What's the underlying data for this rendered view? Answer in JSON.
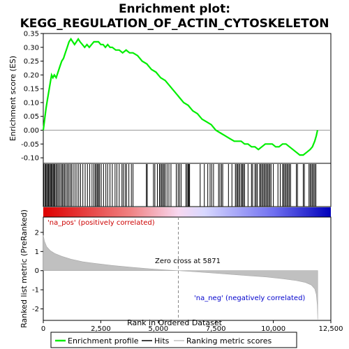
{
  "chart_data": {
    "type": "line",
    "title_line1": "Enrichment plot:",
    "title_line2": "KEGG_REGULATION_OF_ACTIN_CYTOSKELETON",
    "top_panel": {
      "ylabel": "Enrichment score (ES)",
      "ylim": [
        -0.12,
        0.35
      ],
      "yticks": [
        "0.35",
        "0.30",
        "0.25",
        "0.20",
        "0.15",
        "0.10",
        "0.05",
        "0.00",
        "-0.05",
        "-0.10"
      ],
      "ytick_values": [
        0.35,
        0.3,
        0.25,
        0.2,
        0.15,
        0.1,
        0.05,
        0.0,
        -0.05,
        -0.1
      ],
      "series": [
        {
          "name": "Enrichment profile",
          "color": "#00ee00",
          "x": [
            0,
            60,
            120,
            180,
            240,
            300,
            360,
            420,
            480,
            560,
            640,
            720,
            800,
            880,
            960,
            1040,
            1120,
            1200,
            1280,
            1360,
            1440,
            1520,
            1600,
            1700,
            1800,
            1900,
            2000,
            2100,
            2200,
            2300,
            2400,
            2500,
            2600,
            2700,
            2800,
            2900,
            3000,
            3150,
            3300,
            3450,
            3600,
            3750,
            3900,
            4100,
            4300,
            4500,
            4700,
            4900,
            5100,
            5300,
            5500,
            5700,
            5900,
            6100,
            6300,
            6500,
            6700,
            6900,
            7100,
            7300,
            7500,
            7700,
            7900,
            8100,
            8300,
            8450,
            8600,
            8750,
            8900,
            9050,
            9200,
            9350,
            9500,
            9650,
            9800,
            9950,
            10100,
            10250,
            10400,
            10550,
            10700,
            10850,
            11000,
            11150,
            11300,
            11450,
            11600,
            11700,
            11800,
            11870,
            11920
          ],
          "y": [
            0.0,
            0.04,
            0.08,
            0.11,
            0.14,
            0.17,
            0.2,
            0.19,
            0.2,
            0.19,
            0.21,
            0.23,
            0.25,
            0.26,
            0.28,
            0.3,
            0.32,
            0.33,
            0.32,
            0.31,
            0.32,
            0.33,
            0.32,
            0.31,
            0.3,
            0.31,
            0.3,
            0.31,
            0.32,
            0.32,
            0.32,
            0.31,
            0.31,
            0.3,
            0.31,
            0.3,
            0.3,
            0.29,
            0.29,
            0.28,
            0.29,
            0.28,
            0.28,
            0.27,
            0.25,
            0.24,
            0.22,
            0.21,
            0.19,
            0.18,
            0.16,
            0.14,
            0.12,
            0.1,
            0.09,
            0.07,
            0.06,
            0.04,
            0.03,
            0.02,
            0.0,
            -0.01,
            -0.02,
            -0.03,
            -0.04,
            -0.04,
            -0.04,
            -0.05,
            -0.05,
            -0.06,
            -0.06,
            -0.07,
            -0.06,
            -0.05,
            -0.05,
            -0.05,
            -0.06,
            -0.06,
            -0.05,
            -0.05,
            -0.06,
            -0.07,
            -0.08,
            -0.09,
            -0.09,
            -0.08,
            -0.07,
            -0.06,
            -0.04,
            -0.02,
            0.0
          ]
        }
      ]
    },
    "hits_panel": {
      "series_name": "Hits",
      "hit_positions": [
        20,
        70,
        110,
        150,
        190,
        230,
        270,
        310,
        350,
        390,
        430,
        470,
        510,
        560,
        610,
        660,
        720,
        780,
        830,
        880,
        930,
        990,
        1050,
        1110,
        1170,
        1230,
        1300,
        1380,
        1460,
        1540,
        1620,
        1720,
        1820,
        1920,
        2020,
        2120,
        2200,
        2260,
        2310,
        2360,
        2400,
        2450,
        2520,
        2620,
        2720,
        2800,
        2900,
        3000,
        3120,
        3200,
        3300,
        3420,
        3480,
        3560,
        3620,
        3720,
        3830,
        3900,
        4480,
        4520,
        4790,
        4850,
        4960,
        5050,
        5100,
        5150,
        5200,
        5250,
        5300,
        5380,
        5460,
        5550,
        5780,
        5860,
        5920,
        5990,
        6200,
        6250,
        6300,
        6330,
        6360,
        6820,
        7000,
        7150,
        7250,
        7320,
        7400,
        7620,
        7680,
        7750,
        7800,
        8050,
        8200,
        8350,
        8400,
        8450,
        8500,
        8550,
        8620,
        8650,
        8700,
        8750,
        8900,
        9050,
        9100,
        9200,
        9250,
        9300,
        9400,
        9450,
        9500,
        9550,
        9600,
        9650,
        9700,
        9750,
        9800,
        9850,
        9900,
        10000,
        10200,
        10300,
        10400,
        10450,
        10500,
        10550,
        10600,
        10650,
        10700,
        10750,
        11000,
        11050,
        11300,
        11350,
        11550,
        11600,
        11650,
        11700,
        11750,
        11800,
        11850
      ]
    },
    "rank_panel": {
      "series_name": "Ranking metric scores",
      "ylabel": "Ranked list metric (PreRanked)",
      "ylim": [
        -2.6,
        2.8
      ],
      "yticks": [
        "2",
        "1",
        "0",
        "-1",
        "-2"
      ],
      "ytick_values": [
        2,
        1,
        0,
        -1,
        -2
      ],
      "x": [
        0,
        50,
        150,
        300,
        500,
        800,
        1200,
        1700,
        2300,
        3000,
        3800,
        4600,
        5400,
        5871,
        6500,
        7300,
        8100,
        8900,
        9700,
        10400,
        11000,
        11400,
        11650,
        11800,
        11870,
        11910,
        11930
      ],
      "y": [
        1.85,
        1.55,
        1.25,
        1.05,
        0.9,
        0.75,
        0.6,
        0.47,
        0.37,
        0.27,
        0.18,
        0.1,
        0.03,
        0.0,
        -0.05,
        -0.12,
        -0.19,
        -0.26,
        -0.33,
        -0.42,
        -0.52,
        -0.62,
        -0.75,
        -0.95,
        -1.25,
        -1.8,
        -2.55
      ]
    },
    "xlabel": "Rank in Ordered Dataset",
    "xlim": [
      0,
      12500
    ],
    "xticks": [
      "0",
      "2,500",
      "5,000",
      "7,500",
      "10,000",
      "12,500"
    ],
    "xtick_values": [
      0,
      2500,
      5000,
      7500,
      10000,
      12500
    ],
    "zero_cross_label": "Zero cross at 5871",
    "zero_cross_value": 5871,
    "pos_label": "'na_pos' (positively correlated)",
    "neg_label": "'na_neg' (negatively correlated)",
    "legend": [
      {
        "label": "Enrichment profile",
        "color": "#00ee00"
      },
      {
        "label": "Hits",
        "color": "#000000"
      },
      {
        "label": "Ranking metric scores",
        "color": "#c0c0c0"
      }
    ],
    "colors": {
      "profile": "#00ee00",
      "hits": "#000000",
      "rank_fill": "#c0c0c0",
      "pos_text": "#cc0000",
      "neg_text": "#0000cc",
      "bar_pos": "#dd0000",
      "bar_neg": "#0000bb"
    }
  }
}
